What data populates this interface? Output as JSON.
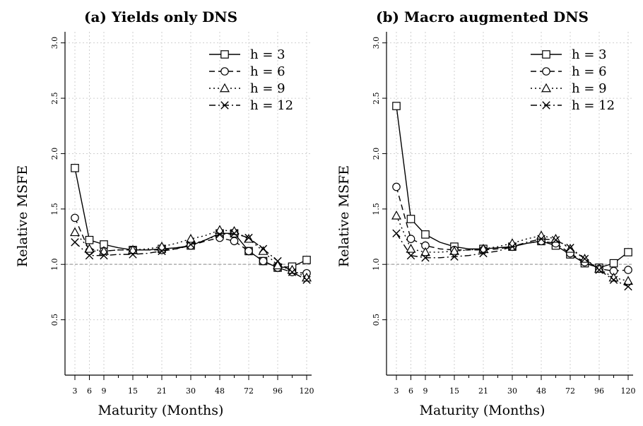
{
  "chart_data": [
    {
      "type": "line",
      "title": "(a) Yields only DNS",
      "xlabel": "Maturity (Months)",
      "ylabel": "Relative MSFE",
      "ylim": [
        0,
        3.1
      ],
      "y_ticks": [
        "0.5",
        "1.0",
        "1.5",
        "2.0",
        "2.5",
        "3.0"
      ],
      "x_ticks": [
        "3",
        "6",
        "9",
        "15",
        "21",
        "30",
        "48",
        "72",
        "96",
        "120"
      ],
      "reference_line": 1.0,
      "grid": true,
      "legend_position": "top-right",
      "series": [
        {
          "name": "h = 3",
          "marker": "square",
          "dash": "solid",
          "values": [
            1.87,
            1.22,
            1.18,
            1.15,
            1.13,
            1.13,
            1.14,
            1.15,
            1.17,
            1.22,
            1.28,
            1.28,
            1.12,
            1.03,
            0.97,
            0.98,
            1.04
          ]
        },
        {
          "name": "h = 6",
          "marker": "circle",
          "dash": "dashed",
          "values": [
            1.42,
            1.12,
            1.12,
            1.13,
            1.13,
            1.13,
            1.13,
            1.14,
            1.17,
            1.21,
            1.24,
            1.21,
            1.12,
            1.03,
            0.97,
            0.93,
            0.92
          ]
        },
        {
          "name": "h = 9",
          "marker": "triangle",
          "dash": "dotted",
          "values": [
            1.29,
            1.14,
            1.12,
            1.13,
            1.13,
            1.14,
            1.16,
            1.19,
            1.23,
            1.26,
            1.31,
            1.3,
            1.23,
            1.12,
            0.99,
            0.95,
            0.88
          ]
        },
        {
          "name": "h = 12",
          "marker": "cross",
          "dash": "dashdot",
          "values": [
            1.2,
            1.08,
            1.08,
            1.09,
            1.09,
            1.1,
            1.12,
            1.14,
            1.18,
            1.22,
            1.27,
            1.28,
            1.24,
            1.14,
            1.03,
            0.93,
            0.86
          ]
        }
      ]
    },
    {
      "type": "line",
      "title": "(b) Macro augmented DNS",
      "xlabel": "Maturity (Months)",
      "ylabel": "Relative MSFE",
      "ylim": [
        0,
        3.1
      ],
      "y_ticks": [
        "0.5",
        "1.0",
        "1.5",
        "2.0",
        "2.5",
        "3.0"
      ],
      "x_ticks": [
        "3",
        "6",
        "9",
        "15",
        "21",
        "30",
        "48",
        "72",
        "96",
        "120"
      ],
      "reference_line": 1.0,
      "grid": true,
      "legend_position": "top-right",
      "series": [
        {
          "name": "h = 3",
          "marker": "square",
          "dash": "solid",
          "values": [
            2.43,
            1.41,
            1.27,
            1.2,
            1.16,
            1.14,
            1.14,
            1.15,
            1.16,
            1.19,
            1.21,
            1.17,
            1.09,
            1.01,
            0.97,
            1.01,
            1.11
          ]
        },
        {
          "name": "h = 6",
          "marker": "circle",
          "dash": "dashed",
          "values": [
            1.7,
            1.23,
            1.17,
            1.14,
            1.13,
            1.13,
            1.13,
            1.14,
            1.16,
            1.19,
            1.21,
            1.19,
            1.1,
            1.02,
            0.96,
            0.94,
            0.95
          ]
        },
        {
          "name": "h = 9",
          "marker": "triangle",
          "dash": "dotted",
          "values": [
            1.44,
            1.14,
            1.11,
            1.11,
            1.12,
            1.13,
            1.14,
            1.16,
            1.19,
            1.23,
            1.26,
            1.23,
            1.14,
            1.05,
            0.96,
            0.88,
            0.85
          ]
        },
        {
          "name": "h = 12",
          "marker": "cross",
          "dash": "dashdot",
          "values": [
            1.28,
            1.08,
            1.06,
            1.06,
            1.07,
            1.08,
            1.1,
            1.12,
            1.16,
            1.2,
            1.23,
            1.22,
            1.15,
            1.05,
            0.95,
            0.86,
            0.8
          ]
        }
      ]
    }
  ]
}
